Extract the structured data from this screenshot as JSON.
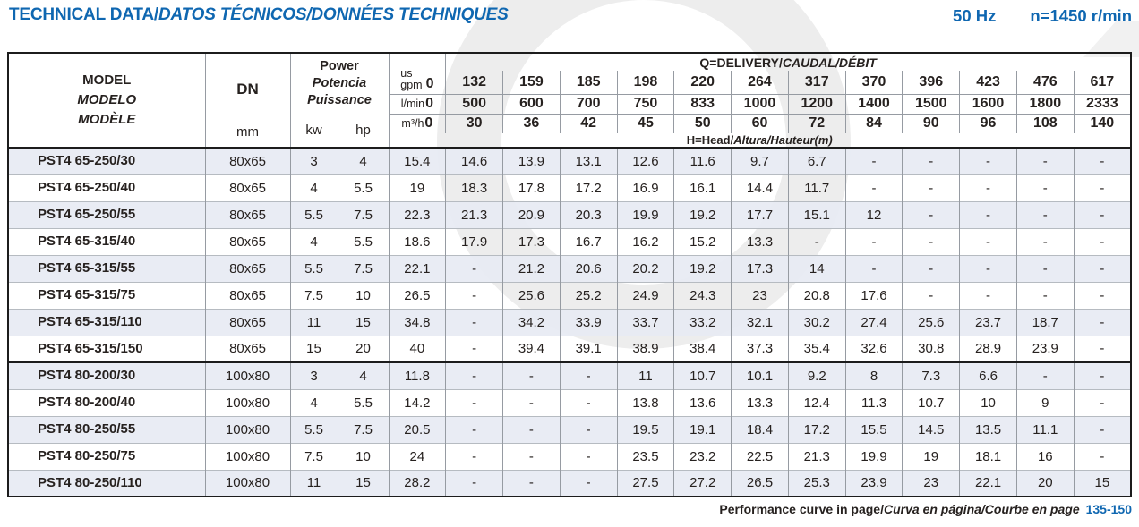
{
  "colors": {
    "accent_blue": "#0f67b1",
    "row_shade": "#e7ebf3"
  },
  "header": {
    "title_bold": "TECHNICAL DATA/",
    "title_italic": "DATOS TÉCNICOS/DONNÉES TECHNIQUES",
    "frequency": "50 Hz",
    "speed": "n=1450 r/min"
  },
  "table": {
    "columns": {
      "model": {
        "label": "MODEL",
        "label_es": "MODELO",
        "label_fr": "MODÈLE"
      },
      "dn": {
        "label": "DN",
        "unit": "mm"
      },
      "power": {
        "label": "Power",
        "label_es": "Potencia",
        "label_fr": "Puissance",
        "units": [
          "kw",
          "hp"
        ]
      }
    },
    "delivery_header": {
      "bold": "Q=DELIVERY/",
      "italic": "CAUDAL/DÉBIT"
    },
    "head_header": {
      "bold": "H=Head/",
      "italic": "Altura/Hauteur",
      "unit": "(m)"
    },
    "flow_rows": [
      {
        "unit_lines": [
          "us",
          "gpm"
        ],
        "values": [
          "0",
          "132",
          "159",
          "185",
          "198",
          "220",
          "264",
          "317",
          "370",
          "396",
          "423",
          "476",
          "617"
        ]
      },
      {
        "unit_lines": [
          "l/min"
        ],
        "values": [
          "0",
          "500",
          "600",
          "700",
          "750",
          "833",
          "1000",
          "1200",
          "1400",
          "1500",
          "1600",
          "1800",
          "2333"
        ]
      },
      {
        "unit_lines": [
          "m³/h"
        ],
        "values": [
          "0",
          "30",
          "36",
          "42",
          "45",
          "50",
          "60",
          "72",
          "84",
          "90",
          "96",
          "108",
          "140"
        ]
      }
    ],
    "rows": [
      {
        "model": "PST4 65-250/30",
        "dn": "80x65",
        "kw": "3",
        "hp": "4",
        "group_start": false,
        "head_m": [
          "15.4",
          "14.6",
          "13.9",
          "13.1",
          "12.6",
          "11.6",
          "9.7",
          "6.7",
          "-",
          "-",
          "-",
          "-",
          "-"
        ]
      },
      {
        "model": "PST4 65-250/40",
        "dn": "80x65",
        "kw": "4",
        "hp": "5.5",
        "group_start": false,
        "head_m": [
          "19",
          "18.3",
          "17.8",
          "17.2",
          "16.9",
          "16.1",
          "14.4",
          "11.7",
          "-",
          "-",
          "-",
          "-",
          "-"
        ]
      },
      {
        "model": "PST4 65-250/55",
        "dn": "80x65",
        "kw": "5.5",
        "hp": "7.5",
        "group_start": false,
        "head_m": [
          "22.3",
          "21.3",
          "20.9",
          "20.3",
          "19.9",
          "19.2",
          "17.7",
          "15.1",
          "12",
          "-",
          "-",
          "-",
          "-"
        ]
      },
      {
        "model": "PST4 65-315/40",
        "dn": "80x65",
        "kw": "4",
        "hp": "5.5",
        "group_start": false,
        "head_m": [
          "18.6",
          "17.9",
          "17.3",
          "16.7",
          "16.2",
          "15.2",
          "13.3",
          "-",
          "-",
          "-",
          "-",
          "-",
          "-"
        ]
      },
      {
        "model": "PST4 65-315/55",
        "dn": "80x65",
        "kw": "5.5",
        "hp": "7.5",
        "group_start": false,
        "head_m": [
          "22.1",
          "-",
          "21.2",
          "20.6",
          "20.2",
          "19.2",
          "17.3",
          "14",
          "-",
          "-",
          "-",
          "-",
          "-"
        ]
      },
      {
        "model": "PST4 65-315/75",
        "dn": "80x65",
        "kw": "7.5",
        "hp": "10",
        "group_start": false,
        "head_m": [
          "26.5",
          "-",
          "25.6",
          "25.2",
          "24.9",
          "24.3",
          "23",
          "20.8",
          "17.6",
          "-",
          "-",
          "-",
          "-"
        ]
      },
      {
        "model": "PST4 65-315/110",
        "dn": "80x65",
        "kw": "11",
        "hp": "15",
        "group_start": false,
        "head_m": [
          "34.8",
          "-",
          "34.2",
          "33.9",
          "33.7",
          "33.2",
          "32.1",
          "30.2",
          "27.4",
          "25.6",
          "23.7",
          "18.7",
          "-"
        ]
      },
      {
        "model": "PST4 65-315/150",
        "dn": "80x65",
        "kw": "15",
        "hp": "20",
        "group_start": false,
        "head_m": [
          "40",
          "-",
          "39.4",
          "39.1",
          "38.9",
          "38.4",
          "37.3",
          "35.4",
          "32.6",
          "30.8",
          "28.9",
          "23.9",
          "-"
        ]
      },
      {
        "model": "PST4 80-200/30",
        "dn": "100x80",
        "kw": "3",
        "hp": "4",
        "group_start": true,
        "head_m": [
          "11.8",
          "-",
          "-",
          "-",
          "11",
          "10.7",
          "10.1",
          "9.2",
          "8",
          "7.3",
          "6.6",
          "-",
          "-"
        ]
      },
      {
        "model": "PST4 80-200/40",
        "dn": "100x80",
        "kw": "4",
        "hp": "5.5",
        "group_start": false,
        "head_m": [
          "14.2",
          "-",
          "-",
          "-",
          "13.8",
          "13.6",
          "13.3",
          "12.4",
          "11.3",
          "10.7",
          "10",
          "9",
          "-"
        ]
      },
      {
        "model": "PST4 80-250/55",
        "dn": "100x80",
        "kw": "5.5",
        "hp": "7.5",
        "group_start": false,
        "head_m": [
          "20.5",
          "-",
          "-",
          "-",
          "19.5",
          "19.1",
          "18.4",
          "17.2",
          "15.5",
          "14.5",
          "13.5",
          "11.1",
          "-"
        ]
      },
      {
        "model": "PST4 80-250/75",
        "dn": "100x80",
        "kw": "7.5",
        "hp": "10",
        "group_start": false,
        "head_m": [
          "24",
          "-",
          "-",
          "-",
          "23.5",
          "23.2",
          "22.5",
          "21.3",
          "19.9",
          "19",
          "18.1",
          "16",
          "-"
        ]
      },
      {
        "model": "PST4 80-250/110",
        "dn": "100x80",
        "kw": "11",
        "hp": "15",
        "group_start": false,
        "head_m": [
          "28.2",
          "-",
          "-",
          "-",
          "27.5",
          "27.2",
          "26.5",
          "25.3",
          "23.9",
          "23",
          "22.1",
          "20",
          "15"
        ]
      }
    ]
  },
  "footer": {
    "bold": "Performance curve in page/",
    "italic": "Curva en página/Courbe en page",
    "pages": "135-150"
  }
}
